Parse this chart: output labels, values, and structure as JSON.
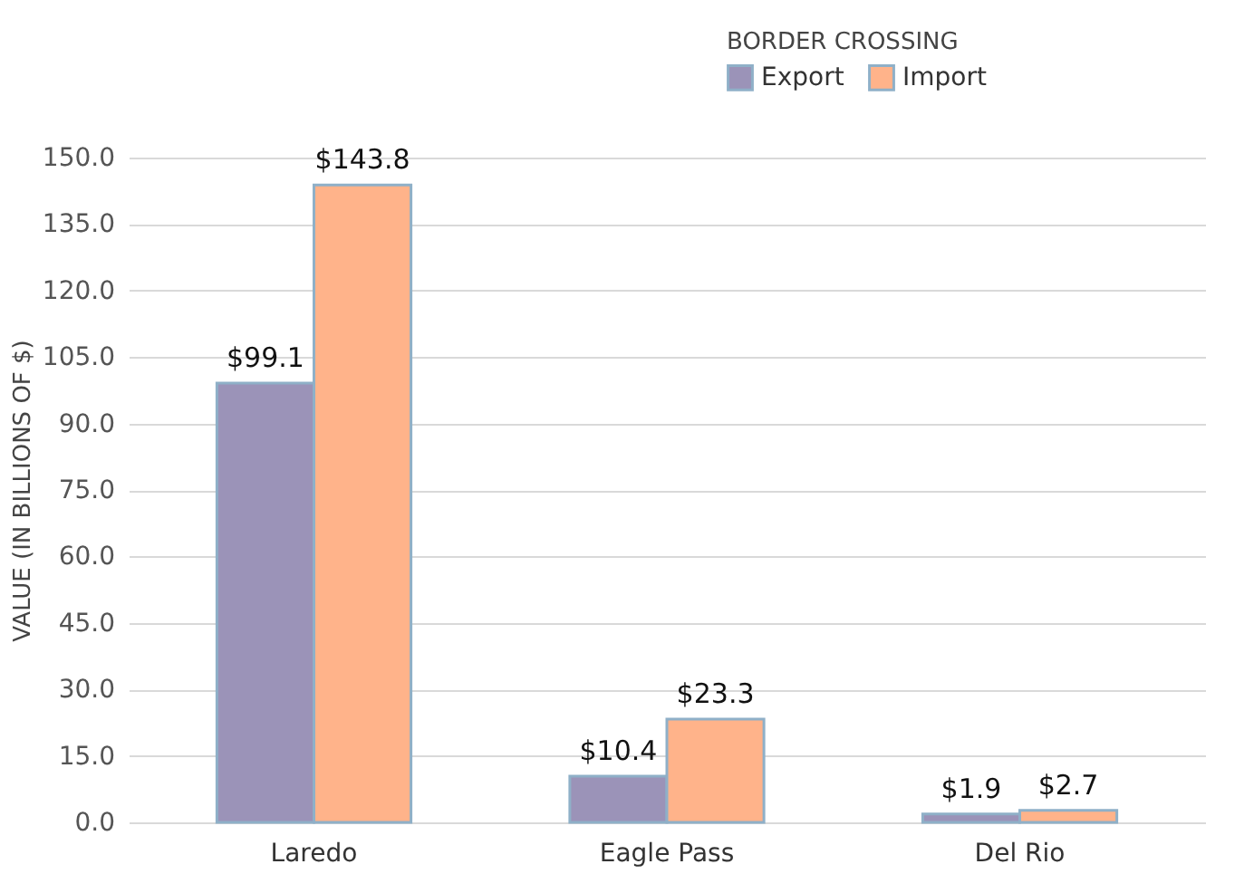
{
  "chart_data": {
    "type": "bar",
    "ylabel": "VALUE (IN BILLIONS OF $)",
    "legend_title": "BORDER CROSSING",
    "legend": "top right",
    "grid": "y",
    "categories": [
      "Laredo",
      "Eagle Pass",
      "Del Rio"
    ],
    "ylim": [
      0,
      150
    ],
    "yticks": [
      {
        "value": 0,
        "label": "0.0"
      },
      {
        "value": 15,
        "label": "15.0"
      },
      {
        "value": 30,
        "label": "30.0"
      },
      {
        "value": 45,
        "label": "45.0"
      },
      {
        "value": 60,
        "label": "60.0"
      },
      {
        "value": 75,
        "label": "75.0"
      },
      {
        "value": 90,
        "label": "90.0"
      },
      {
        "value": 105,
        "label": "105.0"
      },
      {
        "value": 120,
        "label": "120.0"
      },
      {
        "value": 135,
        "label": "135.0"
      },
      {
        "value": 150,
        "label": "150.0"
      }
    ],
    "series": [
      {
        "name": "Export",
        "color": "#9b93b8",
        "values": [
          99.1,
          10.4,
          1.9
        ],
        "value_labels": [
          "$99.1",
          "$10.4",
          "$1.9"
        ]
      },
      {
        "name": "Import",
        "color": "#ffb38a",
        "values": [
          143.8,
          23.3,
          2.7
        ],
        "value_labels": [
          "$143.8",
          "$23.3",
          "$2.7"
        ]
      }
    ]
  }
}
